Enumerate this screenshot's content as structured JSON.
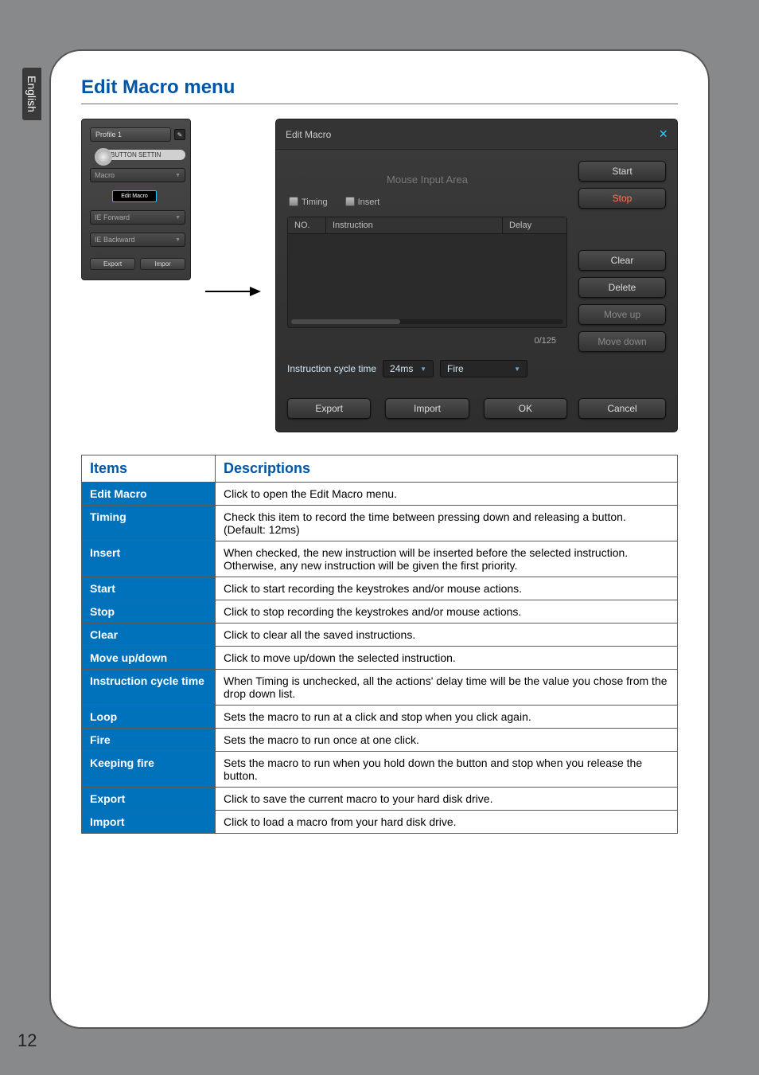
{
  "colors": {
    "brand_blue": "#0055a5",
    "cell_blue": "#0071bb",
    "page_bg": "#88898b",
    "panel_bg_top": "#3b3b3b",
    "panel_bg_bot": "#2e2e2e",
    "cyan_accent": "#2fd3ff",
    "stop_red": "#ff7a5a"
  },
  "side_tab": "English",
  "page_number": "12",
  "title": "Edit Macro menu",
  "mini_panel": {
    "profile_label": "Profile 1",
    "button_settin": "BUTTON SETTIN",
    "items": [
      {
        "label": "Macro",
        "sub": "Edit Macro"
      },
      {
        "label": "IE Forward"
      },
      {
        "label": "IE Backward"
      }
    ],
    "export": "Export",
    "import": "Impor"
  },
  "dialog": {
    "title": "Edit Macro",
    "mouse_area": "Mouse Input Area",
    "timing_label": "Timing",
    "insert_label": "Insert",
    "table_headers": {
      "no": "NO.",
      "instruction": "Instruction",
      "delay": "Delay"
    },
    "counter": "0/125",
    "cycle_label": "Instruction cycle time",
    "cycle_value": "24ms",
    "mode_value": "Fire",
    "buttons": {
      "start": "Start",
      "stop": "Stop",
      "clear": "Clear",
      "delete": "Delete",
      "move_up": "Move up",
      "move_down": "Move down",
      "export": "Export",
      "import": "Import",
      "ok": "OK",
      "cancel": "Cancel"
    }
  },
  "ref_table": {
    "head_items": "Items",
    "head_desc": "Descriptions",
    "rows": [
      {
        "k": "Edit Macro",
        "v": "Click to open the Edit Macro menu."
      },
      {
        "k": "Timing",
        "v": "Check this item to record the time between pressing down and releasing a button. (Default: 12ms)"
      },
      {
        "k": "Insert",
        "v": "When checked, the new instruction will be inserted before the selected instruction. Otherwise, any new instruction will be given the first priority."
      },
      {
        "k": "Start",
        "v": "Click to start recording the keystrokes and/or mouse actions."
      },
      {
        "k": "Stop",
        "v": "Click to stop recording the keystrokes and/or mouse actions."
      },
      {
        "k": "Clear",
        "v": "Click to clear all the saved instructions."
      },
      {
        "k": "Move up/down",
        "v": "Click to move up/down the selected instruction."
      },
      {
        "k": "Instruction cycle time",
        "v": "When Timing is unchecked, all the actions' delay time will be the value you chose from the drop down list."
      },
      {
        "k": "Loop",
        "v": "Sets the macro to run at a click and stop when you click again."
      },
      {
        "k": "Fire",
        "v": "Sets the macro to run once at one click."
      },
      {
        "k": "Keeping fire",
        "v": "Sets the macro to run when you hold down the button and stop when you release the button."
      },
      {
        "k": "Export",
        "v": "Click to save the current macro to your hard disk drive."
      },
      {
        "k": "Import",
        "v": "Click to load a macro from your hard disk drive."
      }
    ]
  }
}
